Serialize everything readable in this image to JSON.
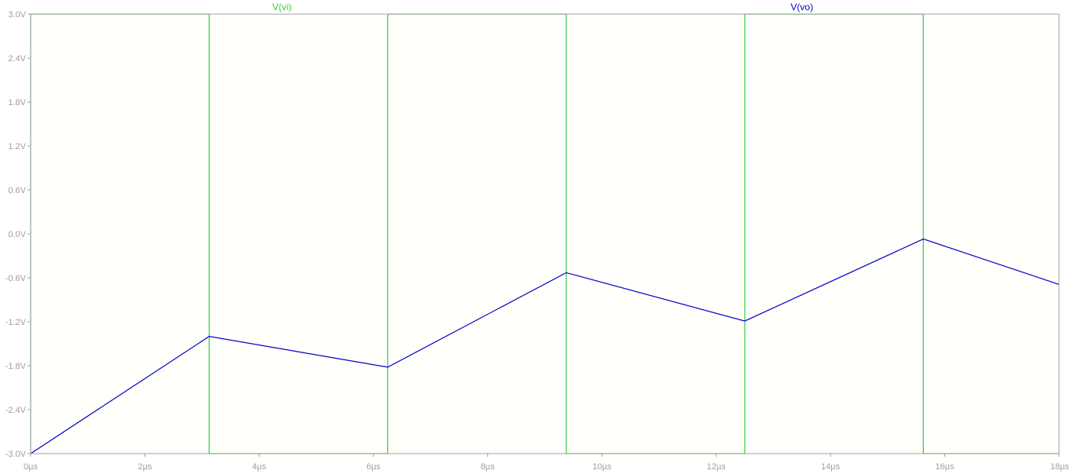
{
  "chart_data": {
    "type": "line",
    "title": "",
    "xlabel": "",
    "ylabel": "",
    "xlim": [
      0,
      18
    ],
    "ylim": [
      -3.0,
      3.0
    ],
    "grid": false,
    "legend": "top, above plot",
    "x_tick_values": [
      0,
      2,
      4,
      6,
      8,
      10,
      12,
      14,
      16,
      18
    ],
    "x_tick_labels": [
      "0µs",
      "2µs",
      "4µs",
      "6µs",
      "8µs",
      "10µs",
      "12µs",
      "14µs",
      "16µs",
      "18µs"
    ],
    "y_tick_values": [
      3.0,
      2.4,
      1.8,
      1.2,
      0.6,
      0.0,
      -0.6,
      -1.2,
      -1.8,
      -2.4,
      -3.0
    ],
    "y_tick_labels": [
      "3.0V",
      "2.4V",
      "1.8V",
      "1.2V",
      "0.6V",
      "0.0V",
      "-0.6V",
      "-1.2V",
      "-1.8V",
      "-2.4V",
      "-3.0V"
    ],
    "series": [
      {
        "name": "V(vi)",
        "color": "#33cc33",
        "label_x": 4.4,
        "x": [
          0,
          0,
          3.125,
          3.125,
          6.25,
          6.25,
          9.375,
          9.375,
          12.5,
          12.5,
          15.625,
          15.625,
          18
        ],
        "y": [
          -3.0,
          3.0,
          3.0,
          -3.0,
          -3.0,
          3.0,
          3.0,
          -3.0,
          -3.0,
          3.0,
          3.0,
          -3.0,
          -3.0
        ]
      },
      {
        "name": "V(vo)",
        "color": "#0000cc",
        "label_x": 13.5,
        "x": [
          0,
          3.125,
          6.25,
          9.375,
          12.5,
          15.625,
          18
        ],
        "y": [
          -3.0,
          -1.4,
          -1.82,
          -0.53,
          -1.19,
          -0.07,
          -0.69
        ]
      }
    ]
  }
}
